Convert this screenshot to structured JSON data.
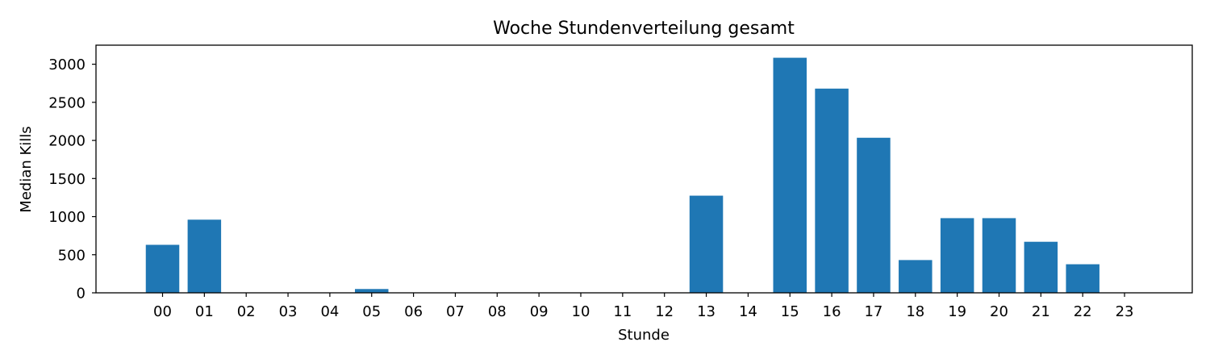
{
  "chart_data": {
    "type": "bar",
    "title": "Woche Stundenverteilung gesamt",
    "xlabel": "Stunde",
    "ylabel": "Median Kills",
    "categories": [
      "00",
      "01",
      "02",
      "03",
      "04",
      "05",
      "06",
      "07",
      "08",
      "09",
      "10",
      "11",
      "12",
      "13",
      "14",
      "15",
      "16",
      "17",
      "18",
      "19",
      "20",
      "21",
      "22",
      "23"
    ],
    "values": [
      630,
      960,
      0,
      0,
      0,
      50,
      0,
      0,
      0,
      0,
      0,
      0,
      0,
      1275,
      0,
      3085,
      2680,
      2035,
      430,
      980,
      980,
      670,
      375,
      0
    ],
    "yticks": [
      0,
      500,
      1000,
      1500,
      2000,
      2500,
      3000
    ],
    "ylim": [
      0,
      3250
    ],
    "bar_color": "#1f77b4",
    "grid": false,
    "legend": false
  }
}
